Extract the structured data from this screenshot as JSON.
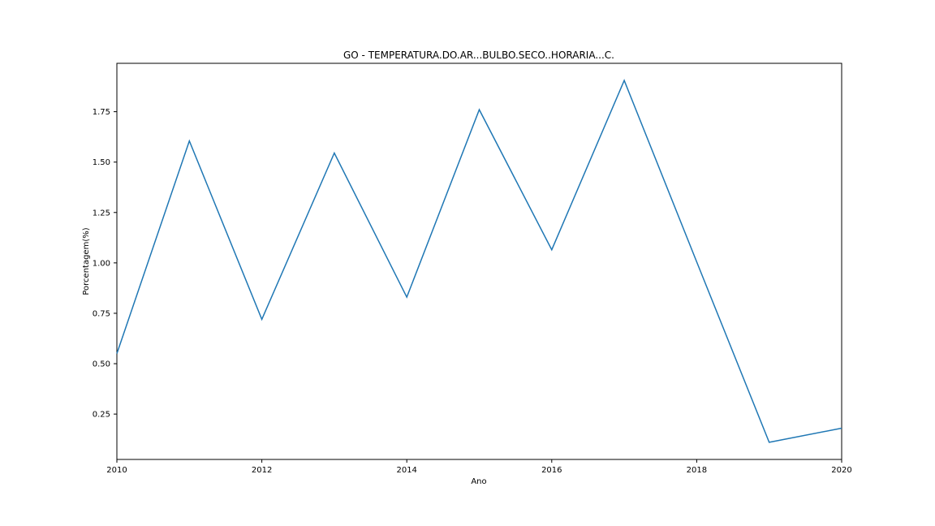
{
  "chart_data": {
    "type": "line",
    "title": "GO - TEMPERATURA.DO.AR...BULBO.SECO..HORARIA...C.",
    "xlabel": "Ano",
    "ylabel": "Porcentagem(%)",
    "x": [
      2010,
      2011,
      2012,
      2013,
      2014,
      2015,
      2016,
      2017,
      2018,
      2019,
      2020
    ],
    "series": [
      {
        "values": [
          0.55,
          1.605,
          0.72,
          1.545,
          0.83,
          1.76,
          1.065,
          1.905,
          1.005,
          0.11,
          0.18
        ],
        "color": "#1f77b4"
      }
    ],
    "xlim": [
      2010,
      2020
    ],
    "ylim": [
      0.025,
      1.99
    ],
    "xticks": [
      2010,
      2012,
      2014,
      2016,
      2018,
      2020
    ],
    "xtick_labels": [
      "2010",
      "2012",
      "2014",
      "2016",
      "2018",
      "2020"
    ],
    "yticks": [
      0.25,
      0.5,
      0.75,
      1.0,
      1.25,
      1.5,
      1.75
    ],
    "ytick_labels": [
      "0.25",
      "0.50",
      "0.75",
      "1.00",
      "1.25",
      "1.50",
      "1.75"
    ],
    "grid": false,
    "legend": false
  }
}
